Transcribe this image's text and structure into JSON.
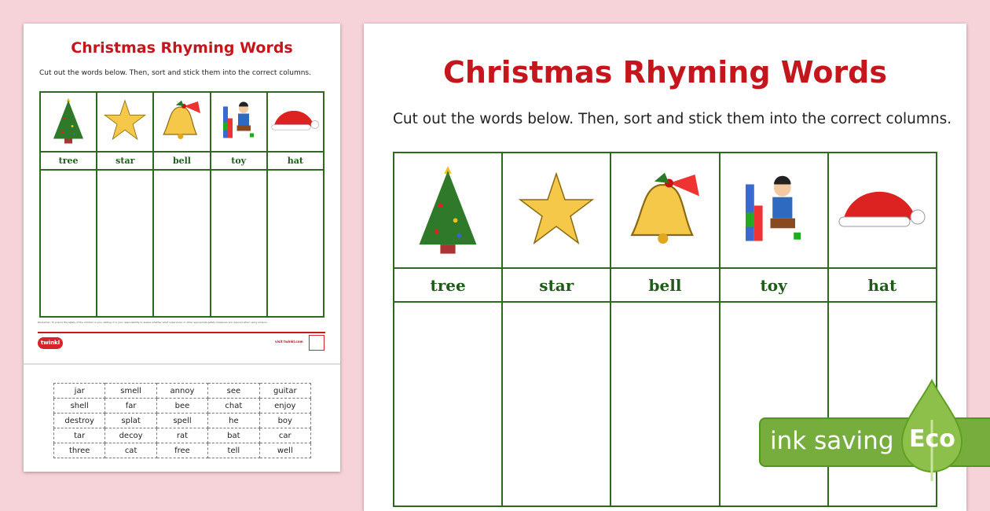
{
  "worksheet": {
    "title": "Christmas Rhyming Words",
    "instructions": "Cut out the words below. Then, sort and stick them into the correct columns.",
    "columns": [
      {
        "word": "tree",
        "icon": "christmas-tree-icon"
      },
      {
        "word": "star",
        "icon": "star-icon"
      },
      {
        "word": "bell",
        "icon": "bell-icon"
      },
      {
        "word": "toy",
        "icon": "toy-blocks-boy-icon"
      },
      {
        "word": "hat",
        "icon": "santa-hat-icon"
      }
    ],
    "disclaimer": "Disclaimer: To ensure the safety of the children in your setting, it is your responsibility to assess whether adult supervision or other appropriate safety measures are required when using scissors.",
    "logo": "twinkl",
    "footer_link": "visit twinkl.com",
    "cut_words": [
      [
        "jar",
        "smell",
        "annoy",
        "see",
        "guitar"
      ],
      [
        "shell",
        "far",
        "bee",
        "chat",
        "enjoy"
      ],
      [
        "destroy",
        "splat",
        "spell",
        "he",
        "boy"
      ],
      [
        "tar",
        "decoy",
        "rat",
        "bat",
        "car"
      ],
      [
        "three",
        "cat",
        "free",
        "tell",
        "well"
      ]
    ]
  },
  "badge": {
    "text": "ink saving",
    "eco": "Eco"
  },
  "colors": {
    "title": "#c4161c",
    "grid": "#2d6a1f",
    "background": "#f6d3d8",
    "eco": "#76ad3d"
  }
}
